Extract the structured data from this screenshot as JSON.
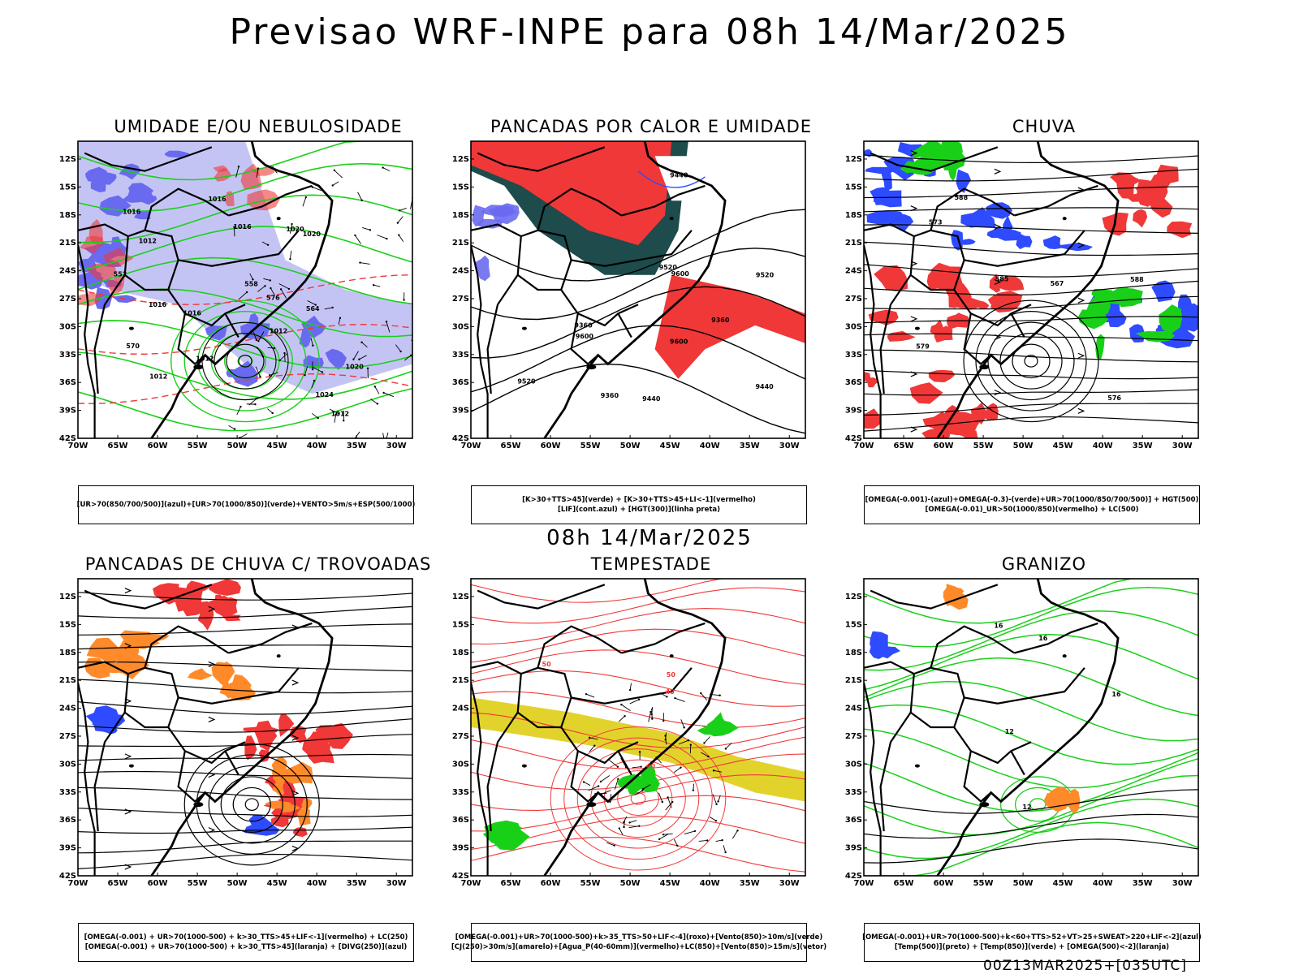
{
  "page": {
    "title": "Previsao WRF-INPE  para 08h 14/Mar/2025",
    "mid_date": "08h 14/Mar/2025",
    "footer": "00Z13MAR2025+[035UTC]"
  },
  "axes": {
    "lat_labels": [
      "12S",
      "15S",
      "18S",
      "21S",
      "24S",
      "27S",
      "30S",
      "33S",
      "36S",
      "39S",
      "42S"
    ],
    "lon_labels": [
      "70W",
      "65W",
      "60W",
      "55W",
      "50W",
      "45W",
      "40W",
      "35W",
      "30W"
    ]
  },
  "colors": {
    "blue_fill": "#6a6af0",
    "light_blue_fill": "#c4c4f4",
    "green": "#19d019",
    "red": "#f03838",
    "dark_teal": "#1e4b4b",
    "blue_line": "#2f4bff",
    "yellow": "#e2d32c",
    "orange": "#ff8a2a",
    "black": "#000000"
  },
  "panels": [
    {
      "id": "umidade",
      "title": "UMIDADE E/OU NEBULOSIDADE",
      "legend": [
        "[UR>70(850/700/500)](azul)+[UR>70(1000/850)](verde)+VENTO>5m/s+ESP(500/1000)"
      ],
      "contour_labels": [
        "1012",
        "1016",
        "1012",
        "1016",
        "1020",
        "1012",
        "1012",
        "1016",
        "1020",
        "1016",
        "1020",
        "1024",
        "1012",
        "1016",
        "576",
        "570",
        "564",
        "558",
        "552"
      ]
    },
    {
      "id": "pancadas-calor",
      "title": "PANCADAS POR CALOR E UMIDADE",
      "legend": [
        "[K>30+TTS>45](verde) + [K>30+TTS>45+LI<-1](vermelho)",
        "[LIF](cont.azul) + [HGT(300)](linha preta)"
      ],
      "contour_labels": [
        "9600",
        "9520",
        "9440",
        "9600",
        "9520",
        "9360",
        "9440",
        "9600",
        "9520",
        "9440",
        "9360",
        "9360"
      ]
    },
    {
      "id": "chuva",
      "title": "CHUVA",
      "legend": [
        "[OMEGA(-0.001)-(azul)+OMEGA(-0.3)-(verde)+UR>70(1000/850/700/500)] + HGT(500)",
        "[OMEGA(-0.01)_UR>50(1000/850)(vermelho) + LC(500)"
      ],
      "contour_labels": [
        "588",
        "588",
        "585",
        "576",
        "579",
        "573",
        "567"
      ]
    },
    {
      "id": "pancadas-trovoadas",
      "title": "PANCADAS DE CHUVA C/ TROVOADAS",
      "legend": [
        "[OMEGA(-0.001) + UR>70(1000-500) + k>30_TTS>45+LIF<-1](vermelho) + LC(250)",
        "[OMEGA(-0.001) + UR>70(1000-500) + k>30_TTS>45](laranja) + [DIVG(250)](azul)"
      ],
      "contour_labels": []
    },
    {
      "id": "tempestade",
      "title": "TEMPESTADE",
      "legend": [
        "[OMEGA(-0.001)+UR>70(1000-500)+k>35_TTS>50+LIF<-4](roxo)+[Vento(850)>10m/s](verde)",
        "[CJ(250)>30m/s](amarelo)+[Agua_P(40-60mm)](vermelho)+LC(850)+[Vento(850)>15m/s](vetor)"
      ],
      "contour_labels": [
        "50",
        "40",
        "50",
        "40"
      ]
    },
    {
      "id": "granizo",
      "title": "GRANIZO",
      "legend": [
        "[OMEGA(-0.001)+UR>70(1000-500)+k<60+TTS>52+VT>25+SWEAT>220+LIF<-2](azul)",
        "[Temp(500)](preto) + [Temp(850)](verde) + [OMEGA(500)<-2](laranja)"
      ],
      "contour_labels": [
        "16",
        "12",
        "16",
        "12",
        "16"
      ]
    }
  ]
}
